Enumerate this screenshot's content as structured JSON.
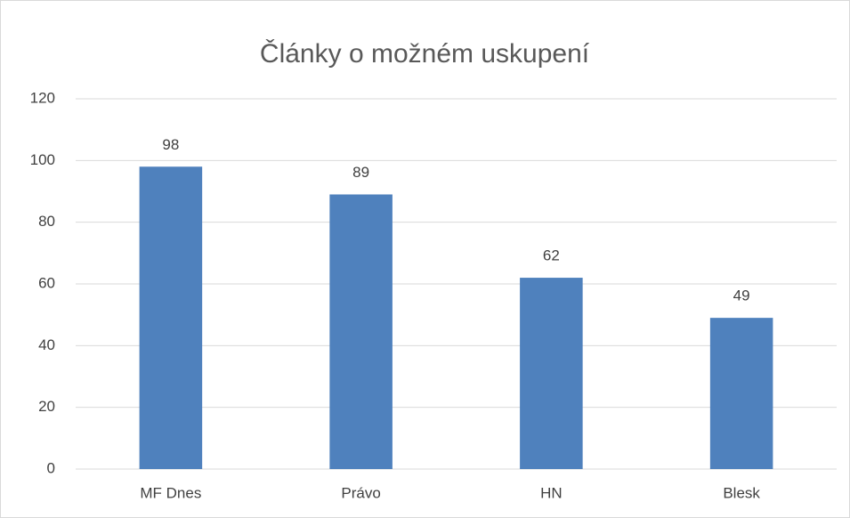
{
  "chart_data": {
    "type": "bar",
    "title": "Články o možném uskupení",
    "categories": [
      "MF Dnes",
      "Právo",
      "HN",
      "Blesk"
    ],
    "values": [
      98,
      89,
      62,
      49
    ],
    "color": "#4f81bd",
    "ylim": [
      0,
      120
    ],
    "yticks": [
      0,
      20,
      40,
      60,
      80,
      100,
      120
    ],
    "grid": true
  }
}
